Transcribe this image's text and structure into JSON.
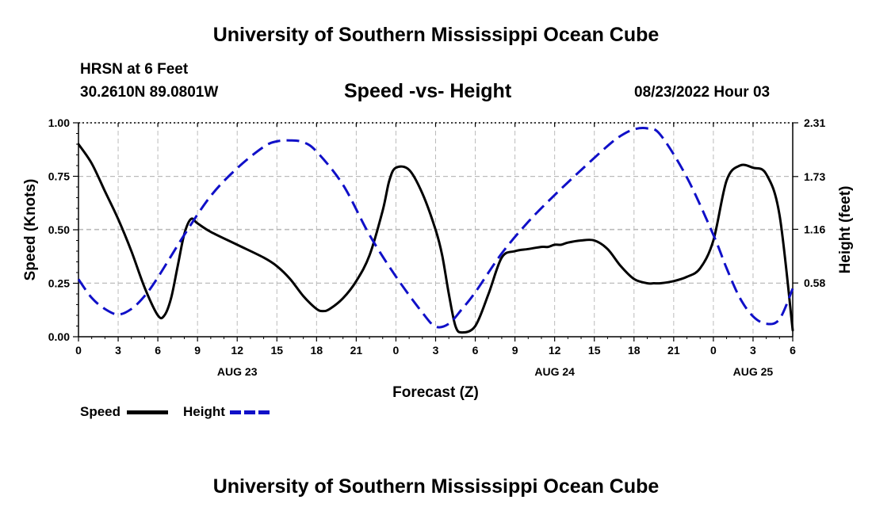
{
  "page": {
    "title_top": "University of Southern Mississippi Ocean Cube",
    "title_bottom": "University of Southern Mississippi Ocean Cube",
    "station": "HRSN at 6 Feet",
    "coords": "30.2610N  89.0801W",
    "subtitle": "Speed -vs- Height",
    "datetime": "08/23/2022 Hour 03"
  },
  "colors": {
    "speed": "#000000",
    "height": "#1010c8",
    "grid": "#bbbbbb"
  },
  "chart_data": {
    "type": "line",
    "title": "Speed -vs- Height",
    "xlabel": "Forecast (Z)",
    "ylabel": "Speed (Knots)",
    "y2label": "Height (feet)",
    "x_range": [
      0,
      54
    ],
    "x_tick_labels": [
      "0",
      "3",
      "6",
      "9",
      "12",
      "15",
      "18",
      "21",
      "0",
      "3",
      "6",
      "9",
      "12",
      "15",
      "18",
      "21",
      "0",
      "3",
      "6"
    ],
    "date_labels": [
      {
        "x": 12,
        "label": "AUG 23"
      },
      {
        "x": 36,
        "label": "AUG 24"
      },
      {
        "x": 51,
        "label": "AUG 25"
      }
    ],
    "ylim": [
      0,
      1
    ],
    "y_ticks": [
      "0.00",
      "0.25",
      "0.50",
      "0.75",
      "1.00"
    ],
    "y2lim": [
      0,
      2.31
    ],
    "y2_ticks": [
      {
        "label": "0.58",
        "value": 0.58
      },
      {
        "label": "1.16",
        "value": 1.16
      },
      {
        "label": "1.73",
        "value": 1.73
      },
      {
        "label": "2.31",
        "value": 2.31
      }
    ],
    "grid": true,
    "legend": "bottom-left",
    "series": [
      {
        "name": "Speed",
        "axis": "left",
        "style": "solid",
        "x": [
          0,
          1,
          2,
          3,
          4,
          5,
          6,
          6.5,
          7,
          7.5,
          8,
          8.5,
          9,
          10,
          12,
          14,
          15,
          16,
          17,
          18,
          18.5,
          19,
          20,
          21,
          22,
          23,
          23.5,
          24,
          25,
          26,
          27,
          27.5,
          28,
          28.5,
          29,
          30,
          31,
          32,
          33,
          34,
          35,
          35.5,
          36,
          36.5,
          37,
          38,
          39,
          40,
          41,
          42,
          43,
          43.5,
          44,
          45,
          46,
          47,
          48,
          49,
          50,
          51,
          52,
          53,
          54
        ],
        "values": [
          0.9,
          0.81,
          0.68,
          0.55,
          0.4,
          0.23,
          0.1,
          0.1,
          0.18,
          0.33,
          0.48,
          0.55,
          0.53,
          0.49,
          0.43,
          0.37,
          0.33,
          0.27,
          0.19,
          0.13,
          0.12,
          0.13,
          0.18,
          0.26,
          0.38,
          0.59,
          0.73,
          0.79,
          0.78,
          0.67,
          0.5,
          0.38,
          0.2,
          0.05,
          0.02,
          0.05,
          0.2,
          0.37,
          0.4,
          0.41,
          0.42,
          0.42,
          0.43,
          0.43,
          0.44,
          0.45,
          0.45,
          0.41,
          0.33,
          0.27,
          0.25,
          0.25,
          0.25,
          0.26,
          0.28,
          0.32,
          0.45,
          0.73,
          0.8,
          0.79,
          0.76,
          0.57,
          0.03
        ]
      },
      {
        "name": "Height",
        "axis": "right",
        "style": "dashed",
        "x": [
          0,
          1,
          2,
          3,
          4,
          5,
          6,
          8,
          10,
          12,
          14,
          15,
          16,
          17,
          18,
          20,
          22,
          24,
          26,
          27,
          28,
          29,
          30,
          32,
          34,
          36,
          38,
          40,
          41,
          42,
          43,
          44,
          46,
          48,
          49,
          50,
          51,
          52,
          53,
          54
        ],
        "values": [
          0.62,
          0.42,
          0.3,
          0.24,
          0.3,
          0.44,
          0.64,
          1.1,
          1.52,
          1.82,
          2.05,
          2.11,
          2.12,
          2.1,
          2.0,
          1.64,
          1.1,
          0.65,
          0.26,
          0.11,
          0.14,
          0.3,
          0.48,
          0.9,
          1.24,
          1.53,
          1.8,
          2.06,
          2.17,
          2.24,
          2.25,
          2.18,
          1.72,
          1.1,
          0.74,
          0.42,
          0.22,
          0.14,
          0.19,
          0.52
        ]
      }
    ]
  },
  "legend": {
    "speed": "Speed",
    "height": "Height"
  }
}
